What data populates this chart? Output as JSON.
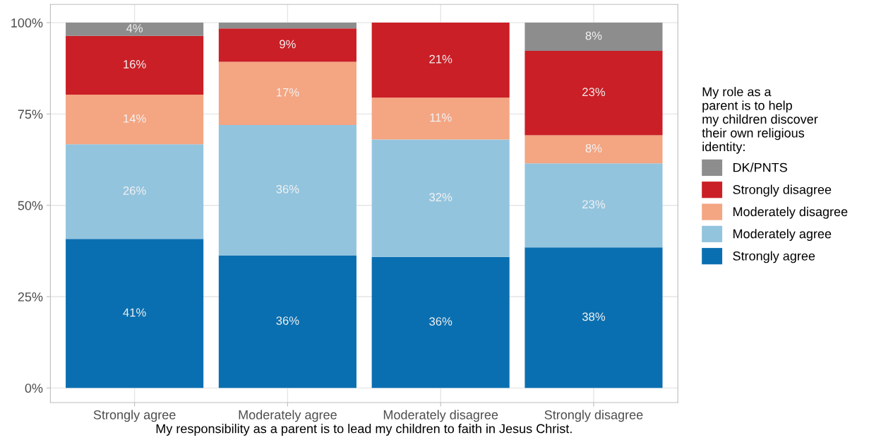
{
  "chart_data": {
    "type": "bar",
    "stacked": true,
    "xlabel": "My responsibility as a parent is to lead my children to faith in Jesus Christ.",
    "legend_title": "My role as a\nparent is to help\nmy children discover\ntheir own religious\nidentity:",
    "categories": [
      "Strongly agree",
      "Moderately agree",
      "Moderately disagree",
      "Strongly disagree"
    ],
    "series": [
      {
        "name": "Strongly agree",
        "color": "#0a6fb0",
        "values": [
          40.8,
          36.3,
          35.9,
          38.5
        ],
        "value_labels": [
          "41%",
          "36%",
          "36%",
          "38%"
        ]
      },
      {
        "name": "Moderately agree",
        "color": "#93c4de",
        "values": [
          25.9,
          35.7,
          32.1,
          23.0
        ],
        "value_labels": [
          "26%",
          "36%",
          "32%",
          "23%"
        ]
      },
      {
        "name": "Moderately disagree",
        "color": "#f4a582",
        "values": [
          13.6,
          17.3,
          11.5,
          7.7
        ],
        "value_labels": [
          "14%",
          "17%",
          "11%",
          "8%"
        ]
      },
      {
        "name": "Strongly disagree",
        "color": "#ca1f26",
        "values": [
          16.1,
          9.1,
          20.5,
          23.1
        ],
        "value_labels": [
          "16%",
          "9%",
          "21%",
          "23%"
        ]
      },
      {
        "name": "DK/PNTS",
        "color": "#8d8d8d",
        "values": [
          3.6,
          1.6,
          0,
          7.7
        ],
        "value_labels": [
          "4%",
          null,
          null,
          "8%"
        ]
      }
    ],
    "ylim": [
      -4,
      105
    ],
    "yticks": [
      {
        "value": 0,
        "label": "0%"
      },
      {
        "value": 25,
        "label": "25%"
      },
      {
        "value": 50,
        "label": "50%"
      },
      {
        "value": 75,
        "label": "75%"
      },
      {
        "value": 100,
        "label": "100%"
      }
    ],
    "grid": true,
    "legend": "right"
  }
}
